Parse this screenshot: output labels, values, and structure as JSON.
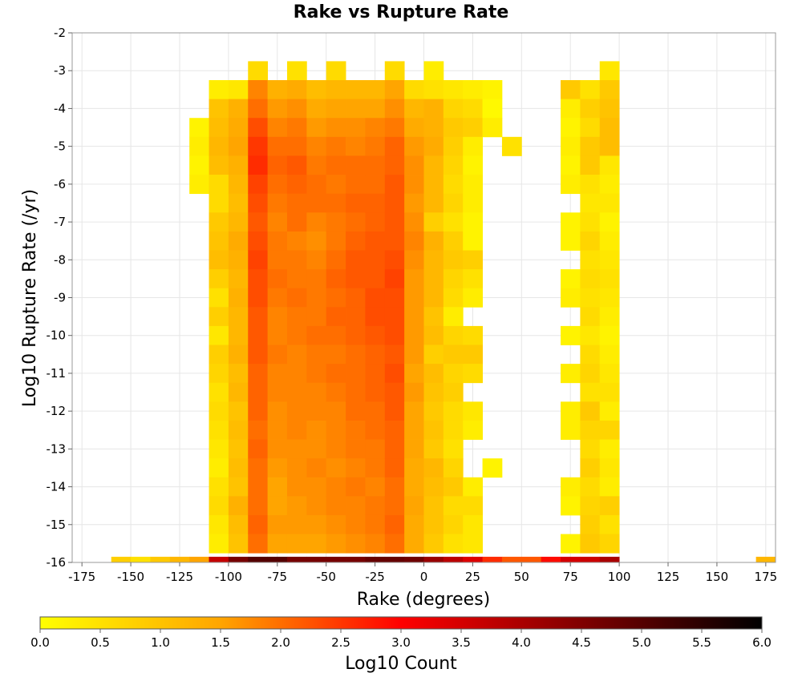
{
  "chart_data": {
    "type": "heatmap",
    "title": "Rake vs Rupture Rate",
    "xlabel": "Rake (degrees)",
    "ylabel": "Log10 Rupture Rate (/yr)",
    "xlim": [
      -180,
      180
    ],
    "ylim": [
      -16,
      -2
    ],
    "xticks": [
      -175,
      -150,
      -125,
      -100,
      -75,
      -50,
      -25,
      0,
      25,
      50,
      75,
      100,
      125,
      150,
      175
    ],
    "xtick_labels": [
      "-175",
      "-150",
      "-125",
      "-100",
      "-75",
      "-50",
      "-25",
      "0",
      "25",
      "50",
      "75",
      "100",
      "125",
      "150",
      "175"
    ],
    "yticks": [
      -2,
      -3,
      -4,
      -5,
      -6,
      -7,
      -8,
      -9,
      -10,
      -11,
      -12,
      -13,
      -14,
      -15,
      -16
    ],
    "ytick_labels": [
      "-2",
      "-3",
      "-4",
      "-5",
      "-6",
      "-7",
      "-8",
      "-9",
      "-10",
      "-11",
      "-12",
      "-13",
      "-14",
      "-15",
      "-16"
    ],
    "grid": true,
    "bin_width_x": 10,
    "bin_height_y": 0.5,
    "colorbar": {
      "label": "Log10 Count",
      "min": 0.0,
      "max": 6.0,
      "ticks": [
        0.0,
        0.5,
        1.0,
        1.5,
        2.0,
        2.5,
        3.0,
        3.5,
        4.0,
        4.5,
        5.0,
        5.5,
        6.0
      ],
      "tick_labels": [
        "0.0",
        "0.5",
        "1.0",
        "1.5",
        "2.0",
        "2.5",
        "3.0",
        "3.5",
        "4.0",
        "4.5",
        "5.0",
        "5.5",
        "6.0"
      ],
      "colors": [
        "#ffff00",
        "#ffa500",
        "#ff0000",
        "#800000",
        "#000000"
      ]
    },
    "row_y_values": [
      -3.0,
      -3.5,
      -4.0,
      -4.5,
      -5.0,
      -5.5,
      -6.0,
      -6.5,
      -7.0,
      -7.5,
      -8.0,
      -8.5,
      -9.0,
      -9.5,
      -10.0,
      -10.5,
      -11.0,
      -11.5,
      -12.0,
      -12.5,
      -13.0,
      -13.5,
      -14.0,
      -14.5,
      -15.0,
      -15.5
    ],
    "columns": [
      {
        "x": -115,
        "values": [
          null,
          null,
          null,
          0.2,
          0.3,
          0.2,
          0.3,
          null,
          null,
          null,
          null,
          null,
          null,
          null,
          null,
          null,
          null,
          null,
          null,
          null,
          null,
          null,
          null,
          null,
          null,
          null
        ]
      },
      {
        "x": -105,
        "values": [
          null,
          0.3,
          1.0,
          1.1,
          1.2,
          1.1,
          0.6,
          0.6,
          0.9,
          1.0,
          1.1,
          0.8,
          0.5,
          0.8,
          0.4,
          0.8,
          0.7,
          0.5,
          0.6,
          0.5,
          0.4,
          0.3,
          0.5,
          0.6,
          0.4,
          0.3
        ]
      },
      {
        "x": -95,
        "values": [
          null,
          0.4,
          1.3,
          1.4,
          1.5,
          1.3,
          1.2,
          1.1,
          1.2,
          1.4,
          1.3,
          1.2,
          1.3,
          1.2,
          1.2,
          1.3,
          1.1,
          1.2,
          1.0,
          1.1,
          1.0,
          1.1,
          1.0,
          1.3,
          1.1,
          1.0
        ]
      },
      {
        "x": -85,
        "values": [
          0.6,
          1.8,
          2.0,
          2.3,
          2.5,
          2.6,
          2.4,
          2.3,
          2.2,
          2.3,
          2.4,
          2.3,
          2.3,
          2.2,
          2.2,
          2.2,
          2.1,
          2.1,
          2.1,
          2.0,
          2.1,
          2.0,
          2.0,
          2.0,
          2.1,
          2.0
        ]
      },
      {
        "x": -75,
        "values": [
          null,
          1.3,
          1.6,
          1.8,
          2.0,
          2.1,
          2.0,
          1.9,
          1.8,
          1.9,
          1.9,
          2.0,
          1.9,
          1.8,
          1.8,
          1.9,
          1.8,
          1.8,
          1.7,
          1.7,
          1.7,
          1.6,
          1.5,
          1.5,
          1.6,
          1.5
        ]
      },
      {
        "x": -65,
        "values": [
          0.5,
          1.4,
          1.7,
          1.9,
          2.0,
          2.2,
          2.1,
          2.0,
          2.0,
          1.8,
          1.9,
          1.9,
          2.0,
          1.9,
          1.9,
          1.8,
          1.8,
          1.8,
          1.8,
          1.8,
          1.7,
          1.7,
          1.7,
          1.6,
          1.6,
          1.5
        ]
      },
      {
        "x": -55,
        "values": [
          null,
          1.1,
          1.4,
          1.6,
          1.8,
          1.9,
          2.0,
          2.0,
          1.8,
          1.7,
          1.8,
          1.9,
          1.9,
          1.9,
          2.0,
          1.9,
          1.9,
          1.8,
          1.8,
          1.7,
          1.7,
          1.8,
          1.7,
          1.7,
          1.6,
          1.5
        ]
      },
      {
        "x": -45,
        "values": [
          0.6,
          1.2,
          1.5,
          1.7,
          1.9,
          2.0,
          1.9,
          2.0,
          1.9,
          1.9,
          2.0,
          2.1,
          2.0,
          2.1,
          2.0,
          1.9,
          2.0,
          1.9,
          1.8,
          1.8,
          1.8,
          1.7,
          1.8,
          1.8,
          1.7,
          1.6
        ]
      },
      {
        "x": -35,
        "values": [
          null,
          1.2,
          1.5,
          1.7,
          1.8,
          2.0,
          2.0,
          2.1,
          2.0,
          2.1,
          2.2,
          2.2,
          2.1,
          2.1,
          2.1,
          2.0,
          2.0,
          2.0,
          2.0,
          1.9,
          1.9,
          1.8,
          1.9,
          1.8,
          1.8,
          1.7
        ]
      },
      {
        "x": -25,
        "values": [
          null,
          1.2,
          1.5,
          1.8,
          1.9,
          2.0,
          2.0,
          2.1,
          2.1,
          2.2,
          2.2,
          2.2,
          2.3,
          2.3,
          2.2,
          2.1,
          2.1,
          2.1,
          2.0,
          2.0,
          1.9,
          1.9,
          1.8,
          1.9,
          1.9,
          1.8
        ]
      },
      {
        "x": -15,
        "values": [
          0.6,
          1.5,
          1.7,
          1.9,
          2.1,
          2.1,
          2.2,
          2.2,
          2.2,
          2.2,
          2.3,
          2.4,
          2.3,
          2.3,
          2.3,
          2.2,
          2.3,
          2.2,
          2.2,
          2.1,
          2.1,
          2.1,
          2.0,
          2.0,
          2.1,
          2.0
        ]
      },
      {
        "x": -5,
        "values": [
          null,
          0.6,
          1.2,
          1.4,
          1.6,
          1.7,
          1.7,
          1.6,
          1.7,
          1.8,
          1.7,
          1.6,
          1.6,
          1.6,
          1.6,
          1.6,
          1.5,
          1.6,
          1.5,
          1.5,
          1.5,
          1.4,
          1.4,
          1.5,
          1.4,
          1.4
        ]
      },
      {
        "x": 5,
        "values": [
          0.3,
          0.5,
          1.3,
          1.3,
          1.4,
          1.2,
          1.2,
          1.2,
          0.8,
          1.3,
          1.2,
          1.2,
          1.2,
          1.0,
          1.1,
          0.8,
          1.1,
          1.0,
          0.9,
          1.0,
          0.9,
          1.2,
          1.1,
          1.0,
          1.0,
          0.9
        ]
      },
      {
        "x": 15,
        "values": [
          null,
          0.4,
          0.7,
          0.9,
          0.8,
          0.7,
          0.6,
          0.7,
          0.5,
          0.8,
          0.9,
          0.7,
          0.6,
          0.3,
          0.7,
          0.9,
          0.7,
          0.8,
          0.6,
          0.6,
          0.5,
          0.7,
          0.9,
          0.6,
          0.7,
          0.5
        ]
      },
      {
        "x": 25,
        "values": [
          null,
          0.3,
          0.6,
          0.8,
          0.3,
          0.2,
          0.3,
          0.3,
          0.2,
          0.2,
          0.8,
          0.5,
          0.3,
          null,
          0.6,
          0.9,
          0.6,
          null,
          0.4,
          0.3,
          null,
          null,
          0.3,
          0.6,
          0.4,
          0.4
        ]
      },
      {
        "x": 35,
        "values": [
          null,
          0.2,
          0.1,
          0.3,
          null,
          null,
          null,
          null,
          null,
          null,
          null,
          null,
          null,
          null,
          null,
          null,
          null,
          null,
          null,
          null,
          null,
          0.2,
          null,
          null,
          null,
          null
        ]
      },
      {
        "x": 45,
        "values": [
          null,
          null,
          null,
          null,
          0.5,
          null,
          null,
          null,
          null,
          null,
          null,
          null,
          null,
          null,
          null,
          null,
          null,
          null,
          null,
          null,
          null,
          null,
          null,
          null,
          null,
          null
        ]
      },
      {
        "x": 75,
        "values": [
          null,
          0.9,
          0.3,
          0.2,
          0.3,
          0.2,
          0.3,
          null,
          0.2,
          0.2,
          null,
          0.2,
          0.3,
          null,
          0.2,
          null,
          0.3,
          null,
          0.3,
          0.3,
          null,
          null,
          0.3,
          0.2,
          null,
          0.2
        ]
      },
      {
        "x": 85,
        "values": [
          null,
          0.5,
          0.8,
          0.6,
          0.9,
          0.9,
          0.5,
          0.4,
          0.5,
          0.7,
          0.5,
          0.6,
          0.5,
          0.6,
          0.4,
          0.6,
          0.7,
          0.5,
          0.9,
          0.7,
          0.6,
          0.8,
          0.6,
          0.7,
          0.8,
          0.9
        ]
      },
      {
        "x": 95,
        "values": [
          0.4,
          0.9,
          1.0,
          1.1,
          1.1,
          0.4,
          0.3,
          0.4,
          0.2,
          0.3,
          0.4,
          0.5,
          0.4,
          0.3,
          0.2,
          0.3,
          0.4,
          0.5,
          0.3,
          0.7,
          0.3,
          0.4,
          0.3,
          0.8,
          0.5,
          0.7
        ]
      }
    ],
    "bottom_row": {
      "y": -16.0,
      "x": [
        -155,
        -145,
        -135,
        -125,
        -115,
        -105,
        -95,
        -85,
        -75,
        -65,
        -55,
        -45,
        -35,
        -25,
        -15,
        -5,
        5,
        15,
        25,
        35,
        45,
        55,
        65,
        75,
        85,
        95,
        175
      ],
      "values": [
        0.8,
        0.5,
        0.9,
        1.2,
        1.5,
        3.7,
        4.6,
        5.0,
        5.0,
        4.6,
        4.6,
        4.6,
        4.6,
        4.8,
        4.8,
        4.7,
        4.2,
        3.8,
        3.4,
        2.6,
        2.2,
        2.2,
        2.9,
        3.5,
        3.6,
        4.0,
        1.2
      ]
    }
  }
}
